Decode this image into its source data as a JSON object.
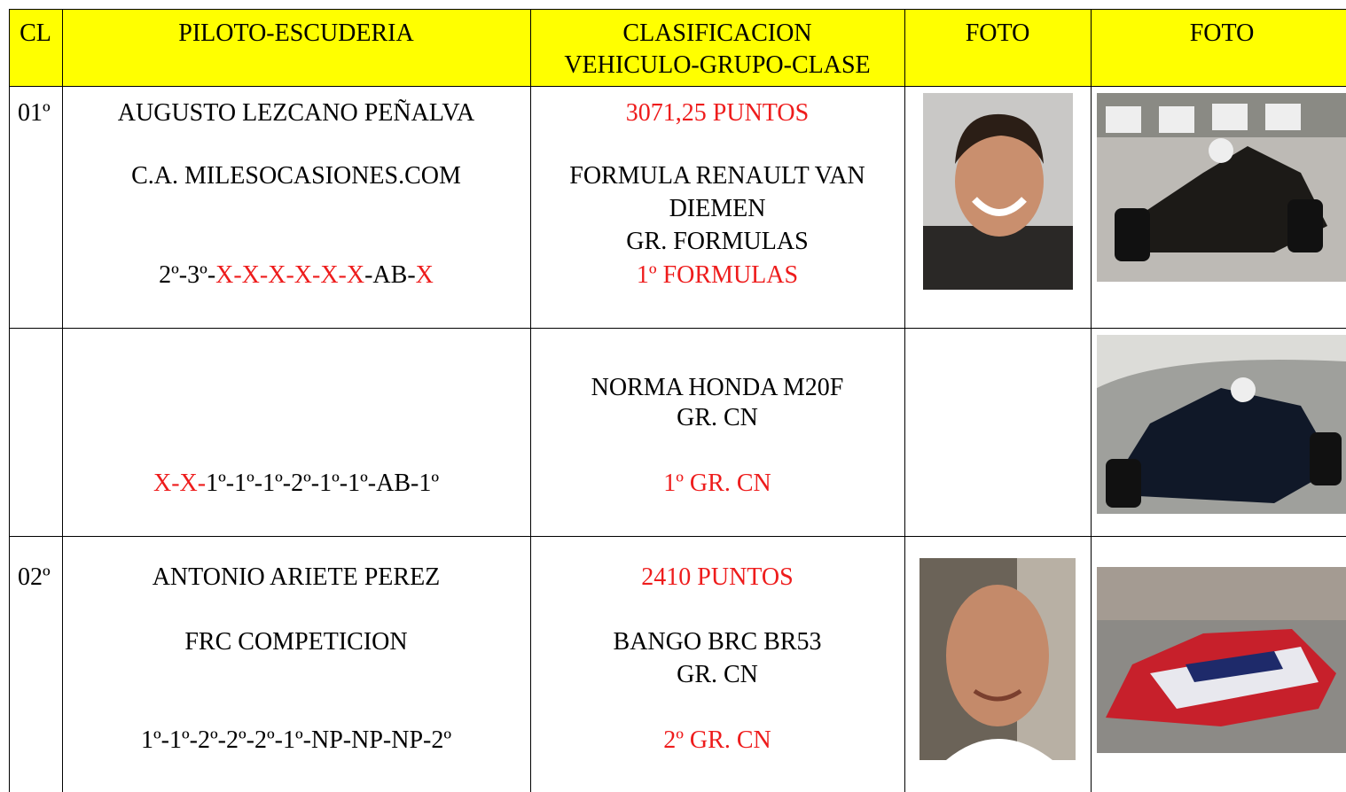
{
  "header": {
    "cl": "CL",
    "piloto": "PILOTO-ESCUDERIA",
    "clasificacion": [
      "CLASIFICACION",
      "VEHICULO-GRUPO-CLASE"
    ],
    "foto": [
      "FOTO",
      "FOTO"
    ]
  },
  "highlight_color": "#ee1c1c",
  "rows": [
    {
      "cl": "01º",
      "piloto": "AUGUSTO LEZCANO PEÑALVA",
      "escuderia": "C.A. MILESOCASIONES.COM",
      "resultados": [
        {
          "text": "2º-3º-",
          "color": "#000000"
        },
        {
          "text": "X-X-X-X-X-X",
          "color": "#ee1c1c"
        },
        {
          "text": "-AB-",
          "color": "#000000"
        },
        {
          "text": "X",
          "color": "#ee1c1c"
        }
      ],
      "puntos": "3071,25 PUNTOS",
      "vehiculo": "FORMULA RENAULT VAN DIEMEN",
      "grupo": "GR. FORMULAS",
      "clase": "1º FORMULAS"
    },
    {
      "resultados": [
        {
          "text": "X-X-",
          "color": "#ee1c1c"
        },
        {
          "text": "1º-1º-1º-2º-1º-1º-AB-1º",
          "color": "#000000"
        }
      ],
      "vehiculo": "NORMA HONDA M20F",
      "grupo": "GR. CN",
      "clase": "1º GR. CN"
    },
    {
      "cl": "02º",
      "piloto": "ANTONIO ARIETE PEREZ",
      "escuderia": "FRC COMPETICION",
      "resultados": [
        {
          "text": "1º-1º-2º-2º-2º-1º-NP-NP-NP-2º",
          "color": "#000000"
        }
      ],
      "puntos": "2410 PUNTOS",
      "vehiculo": "BANGO BRC BR53",
      "grupo": "GR. CN",
      "clase": "2º GR. CN"
    }
  ]
}
